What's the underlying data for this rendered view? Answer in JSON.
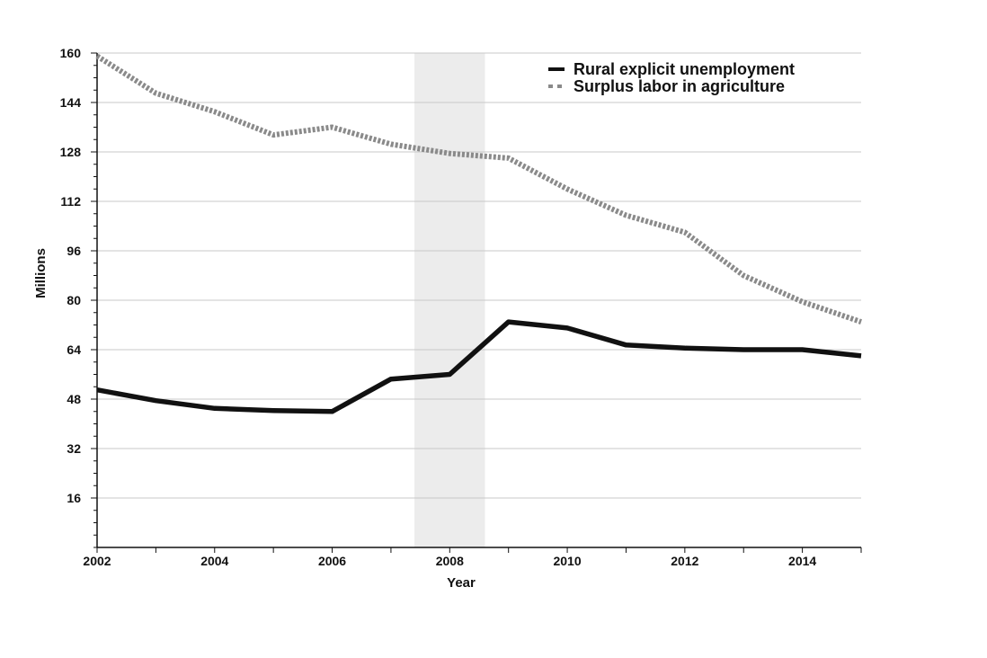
{
  "chart_data": {
    "type": "line",
    "xlabel": "Year",
    "ylabel": "Millions",
    "xlim": [
      2002,
      2015
    ],
    "ylim": [
      0,
      160
    ],
    "x_ticks": [
      2002,
      2004,
      2006,
      2008,
      2010,
      2012,
      2014
    ],
    "y_ticks": [
      16,
      32,
      48,
      64,
      80,
      96,
      112,
      128,
      144,
      160
    ],
    "grid": "horizontal",
    "legend_position": "top-right",
    "shaded_region": {
      "x_start": 2007.4,
      "x_end": 2008.6,
      "color": "#ececec"
    },
    "x": [
      2002,
      2003,
      2004,
      2005,
      2006,
      2007,
      2008,
      2009,
      2010,
      2011,
      2012,
      2013,
      2014,
      2015
    ],
    "series": [
      {
        "name": "Rural explicit unemployment",
        "color": "#111111",
        "style": "solid",
        "values": [
          51,
          47.5,
          45,
          44.3,
          44,
          54.5,
          56,
          73,
          71,
          65.5,
          64.5,
          64,
          64,
          62
        ]
      },
      {
        "name": "Surplus labor in agriculture",
        "color": "#8a8a8a",
        "style": "dashed",
        "values": [
          159,
          147,
          141,
          133.5,
          136,
          130.5,
          127.5,
          126,
          116,
          107.5,
          102,
          88,
          79.5,
          73
        ]
      }
    ]
  }
}
